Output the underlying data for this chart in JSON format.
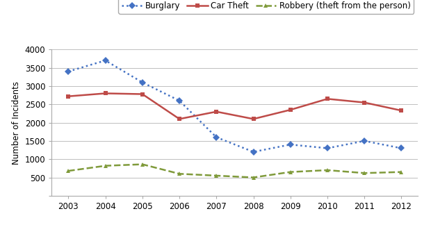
{
  "years": [
    2003,
    2004,
    2005,
    2006,
    2007,
    2008,
    2009,
    2010,
    2011,
    2012
  ],
  "burglary": [
    3400,
    3700,
    3100,
    2600,
    1600,
    1200,
    1400,
    1300,
    1500,
    1300
  ],
  "car_theft": [
    2720,
    2800,
    2780,
    2100,
    2300,
    2100,
    2350,
    2650,
    2550,
    2330
  ],
  "robbery": [
    680,
    820,
    860,
    600,
    550,
    500,
    650,
    700,
    620,
    650
  ],
  "burglary_color": "#4472C4",
  "car_theft_color": "#BE4B48",
  "robbery_color": "#7F9A3A",
  "burglary_label": "Burglary",
  "car_theft_label": "Car Theft",
  "robbery_label": "Robbery (theft from the person)",
  "ylabel": "Number of Incidents",
  "ylim": [
    0,
    4000
  ],
  "yticks": [
    0,
    500,
    1000,
    1500,
    2000,
    2500,
    3000,
    3500,
    4000
  ],
  "bg_color": "#FFFFFF",
  "grid_color": "#BEBEBE",
  "spine_color": "#AAAAAA"
}
